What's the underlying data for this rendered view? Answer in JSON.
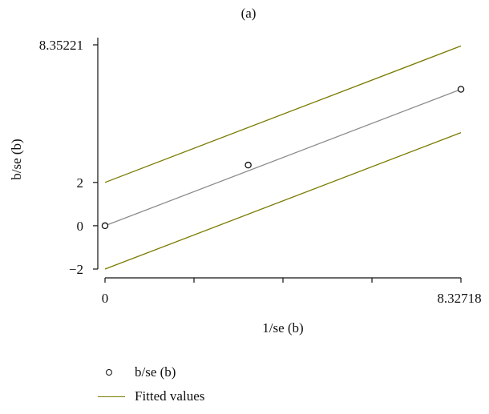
{
  "chart_data": {
    "type": "scatter",
    "title": "(a)",
    "xlabel": "1/se (b)",
    "ylabel": "b/se (b)",
    "xlim": [
      0,
      8.32718
    ],
    "ylim": [
      -2,
      8.35221
    ],
    "x_tick_labels": [
      "0",
      "8.32718"
    ],
    "y_tick_labels": [
      "8.35221",
      "2",
      "0",
      "−2"
    ],
    "y_tick_values": [
      8.35221,
      2,
      0,
      -2
    ],
    "series": [
      {
        "name": "b/se (b)",
        "type": "scatter",
        "marker": "hollow-circle",
        "x": [
          0,
          3.35,
          8.32718
        ],
        "y": [
          0,
          2.8,
          6.3
        ]
      },
      {
        "name": "Fitted values",
        "type": "line",
        "color": "#7a7a00",
        "lines": [
          {
            "x": [
              0,
              8.32718
            ],
            "y": [
              2,
              8.3
            ]
          },
          {
            "x": [
              0,
              8.32718
            ],
            "y": [
              -2,
              4.3
            ]
          }
        ]
      },
      {
        "type": "line",
        "color": "#8c8c8c",
        "lines": [
          {
            "x": [
              0,
              8.32718
            ],
            "y": [
              0,
              6.3
            ]
          }
        ]
      }
    ],
    "legend_position": "bottom-left"
  },
  "legend": {
    "items": [
      {
        "label": "b/se (b)",
        "kind": "marker"
      },
      {
        "label": "Fitted values",
        "kind": "line"
      }
    ]
  }
}
